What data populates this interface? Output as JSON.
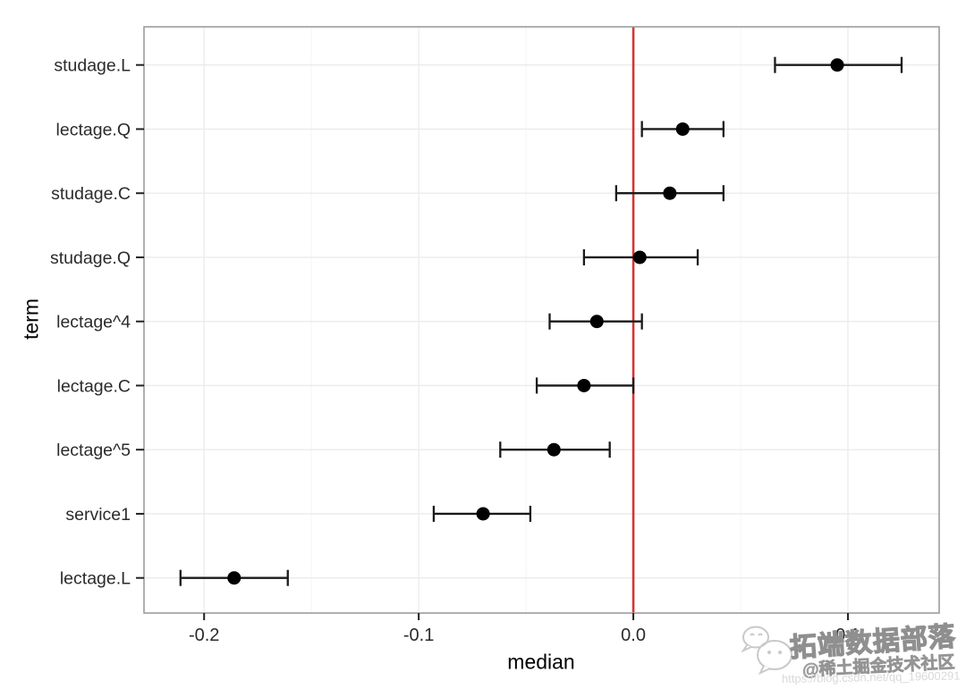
{
  "chart_data": {
    "type": "pointrange",
    "title": "",
    "xlabel": "median",
    "ylabel": "term",
    "xlim": [
      -0.228,
      0.1425
    ],
    "x_ticks": [
      -0.2,
      -0.1,
      0.0,
      0.1
    ],
    "x_tick_labels": [
      "-0.2",
      "-0.1",
      "0.0",
      "0.1"
    ],
    "x_minor_ticks": [
      -0.15,
      -0.05,
      0.05
    ],
    "reference_line_x": 0.0,
    "grid": true,
    "legend": "none",
    "terms": [
      {
        "term": "studage.L",
        "median": 0.095,
        "ci_low": 0.066,
        "ci_high": 0.125
      },
      {
        "term": "lectage.Q",
        "median": 0.023,
        "ci_low": 0.004,
        "ci_high": 0.042
      },
      {
        "term": "studage.C",
        "median": 0.017,
        "ci_low": -0.008,
        "ci_high": 0.042
      },
      {
        "term": "studage.Q",
        "median": 0.003,
        "ci_low": -0.023,
        "ci_high": 0.03
      },
      {
        "term": "lectage^4",
        "median": -0.017,
        "ci_low": -0.039,
        "ci_high": 0.004
      },
      {
        "term": "lectage.C",
        "median": -0.023,
        "ci_low": -0.045,
        "ci_high": 0.0
      },
      {
        "term": "lectage^5",
        "median": -0.037,
        "ci_low": -0.062,
        "ci_high": -0.011
      },
      {
        "term": "service1",
        "median": -0.07,
        "ci_low": -0.093,
        "ci_high": -0.048
      },
      {
        "term": "lectage.L",
        "median": -0.186,
        "ci_low": -0.211,
        "ci_high": -0.161
      }
    ],
    "colors": {
      "point": "#000000",
      "error_bar": "#1a1a1a",
      "reference_line": "#d43531",
      "panel_border": "#9c9c9c",
      "grid_major": "#ebebeb",
      "grid_minor": "#f5f5f5",
      "tick": "#222222",
      "tick_label": "#2b2b2b",
      "axis_title": "#000000",
      "background": "#ffffff",
      "watermark_gray": "#9a9a9a"
    }
  },
  "watermark": {
    "brand": "拓端数据部落",
    "community": "@稀土掘金技术社区",
    "url": "https://blog.csdn.net/qq_19600291",
    "icon": "wechat-chat-bubbles-icon"
  }
}
